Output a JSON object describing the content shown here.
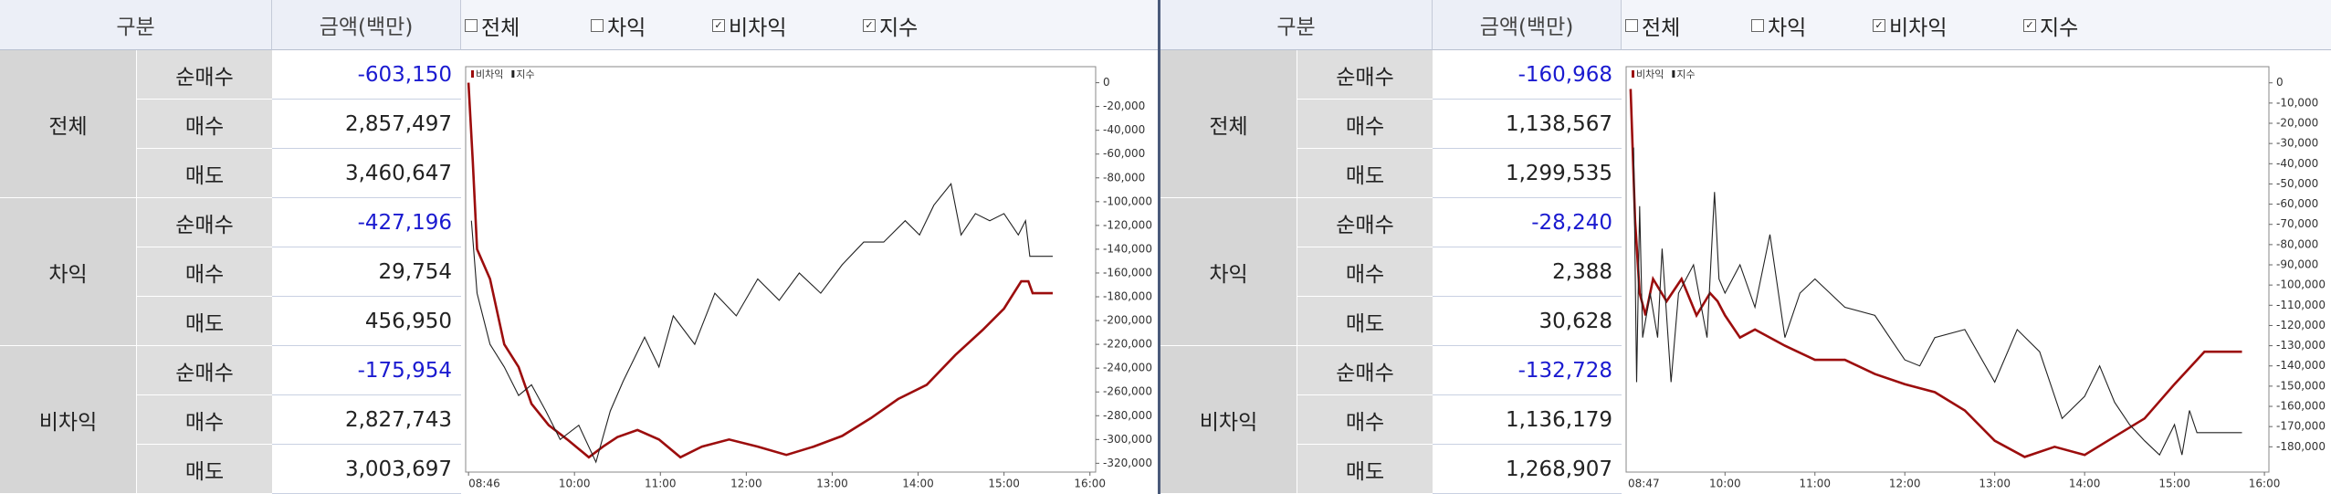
{
  "panels": [
    {
      "header": {
        "category": "구분",
        "amount": "금액(백만)"
      },
      "checkboxes": [
        {
          "label": "전체",
          "checked": false
        },
        {
          "label": "차익",
          "checked": false
        },
        {
          "label": "비차익",
          "checked": true
        },
        {
          "label": "지수",
          "checked": true
        }
      ],
      "groups": [
        {
          "name": "전체",
          "rows": [
            {
              "label": "순매수",
              "amount": "-603,150"
            },
            {
              "label": "매수",
              "amount": "2,857,497"
            },
            {
              "label": "매도",
              "amount": "3,460,647"
            }
          ]
        },
        {
          "name": "차익",
          "rows": [
            {
              "label": "순매수",
              "amount": "-427,196"
            },
            {
              "label": "매수",
              "amount": "29,754"
            },
            {
              "label": "매도",
              "amount": "456,950"
            }
          ]
        },
        {
          "name": "비차익",
          "rows": [
            {
              "label": "순매수",
              "amount": "-175,954"
            },
            {
              "label": "매수",
              "amount": "2,827,743"
            },
            {
              "label": "매도",
              "amount": "3,003,697"
            }
          ]
        }
      ]
    },
    {
      "header": {
        "category": "구분",
        "amount": "금액(백만)"
      },
      "checkboxes": [
        {
          "label": "전체",
          "checked": false
        },
        {
          "label": "차익",
          "checked": false
        },
        {
          "label": "비차익",
          "checked": true
        },
        {
          "label": "지수",
          "checked": true
        }
      ],
      "groups": [
        {
          "name": "전체",
          "rows": [
            {
              "label": "순매수",
              "amount": "-160,968"
            },
            {
              "label": "매수",
              "amount": "1,138,567"
            },
            {
              "label": "매도",
              "amount": "1,299,535"
            }
          ]
        },
        {
          "name": "차익",
          "rows": [
            {
              "label": "순매수",
              "amount": "-28,240"
            },
            {
              "label": "매수",
              "amount": "2,388"
            },
            {
              "label": "매도",
              "amount": "30,628"
            }
          ]
        },
        {
          "name": "비차익",
          "rows": [
            {
              "label": "순매수",
              "amount": "-132,728"
            },
            {
              "label": "매수",
              "amount": "1,136,179"
            },
            {
              "label": "매도",
              "amount": "1,268,907"
            }
          ]
        }
      ]
    }
  ],
  "chart_data": [
    {
      "type": "line",
      "legend": "top-left",
      "xlim": [
        "08:44",
        "16:04"
      ],
      "ylim": [
        13500,
        -327400
      ],
      "xticks": [
        "08:46",
        "10:00",
        "11:00",
        "12:00",
        "13:00",
        "14:00",
        "15:00",
        "16:00"
      ],
      "yticks": [
        0,
        {
          "value": -20000,
          "label": "-20,000"
        },
        {
          "value": -40000,
          "label": "-40,000"
        },
        {
          "value": -60000,
          "label": "-60,000"
        },
        {
          "value": -80000,
          "label": "-80,000"
        },
        {
          "value": -100000,
          "label": "-100,000"
        },
        {
          "value": -120000,
          "label": "-120,000"
        },
        {
          "value": -140000,
          "label": "-140,000"
        },
        {
          "value": -160000,
          "label": "-160,000"
        },
        {
          "value": -180000,
          "label": "-180,000"
        },
        {
          "value": -200000,
          "label": "-200,000"
        },
        {
          "value": -220000,
          "label": "-220,000"
        },
        {
          "value": -240000,
          "label": "-240,000"
        },
        {
          "value": -260000,
          "label": "-260,000"
        },
        {
          "value": -280000,
          "label": "-280,000"
        },
        {
          "value": -300000,
          "label": "-300,000"
        },
        {
          "value": -320000,
          "label": "-320,000"
        }
      ],
      "series": [
        {
          "name": "비차익",
          "color": "#9c0d0d",
          "x": [
            "08:46",
            "08:49",
            "08:52",
            "09:01",
            "09:11",
            "09:21",
            "09:30",
            "09:42",
            "09:55",
            "10:10",
            "10:20",
            "10:30",
            "10:44",
            "10:59",
            "11:14",
            "11:29",
            "11:48",
            "12:08",
            "12:28",
            "12:47",
            "13:07",
            "13:27",
            "13:46",
            "14:06",
            "14:26",
            "14:45",
            "15:00",
            "15:12",
            "15:17",
            "15:20",
            "15:34"
          ],
          "values": [
            0,
            -66000,
            -140000,
            -165000,
            -220000,
            -239000,
            -270000,
            -288000,
            -300000,
            -315000,
            -306000,
            -298000,
            -292000,
            -300000,
            -315000,
            -306000,
            -300000,
            -306000,
            -313000,
            -306000,
            -297000,
            -282000,
            -266000,
            -254000,
            -229000,
            -208000,
            -190000,
            -167000,
            -167000,
            -177000,
            -177000
          ]
        },
        {
          "name": "지수",
          "color": "#222222",
          "x": [
            "08:48",
            "08:52",
            "09:01",
            "09:11",
            "09:21",
            "09:30",
            "09:40",
            "09:50",
            "10:03",
            "10:15",
            "10:25",
            "10:34",
            "10:49",
            "10:59",
            "11:09",
            "11:24",
            "11:38",
            "11:53",
            "12:08",
            "12:23",
            "12:37",
            "12:52",
            "13:07",
            "13:22",
            "13:36",
            "13:51",
            "14:01",
            "14:11",
            "14:23",
            "14:30",
            "14:40",
            "14:50",
            "15:00",
            "15:10",
            "15:15",
            "15:18",
            "15:34"
          ],
          "values": [
            -116000,
            -177000,
            -220000,
            -239000,
            -263000,
            -254000,
            -276000,
            -300000,
            -288000,
            -319000,
            -276000,
            -251000,
            -214000,
            -239000,
            -196000,
            -220000,
            -177000,
            -196000,
            -165000,
            -183000,
            -160000,
            -177000,
            -153000,
            -134000,
            -134000,
            -116000,
            -128000,
            -103000,
            -85000,
            -128000,
            -110000,
            -116000,
            -110000,
            -128000,
            -116000,
            -146000,
            -146000
          ]
        }
      ]
    },
    {
      "type": "line",
      "legend": "top-left",
      "xlim": [
        "08:54",
        "16:03"
      ],
      "ylim": [
        8000,
        -192500
      ],
      "xticks": [
        "08:47",
        "10:00",
        "11:00",
        "12:00",
        "13:00",
        "14:00",
        "15:00",
        "16:00"
      ],
      "yticks": [
        0,
        {
          "value": -10000,
          "label": "-10,000"
        },
        {
          "value": -20000,
          "label": "-20,000"
        },
        {
          "value": -30000,
          "label": "-30,000"
        },
        {
          "value": -40000,
          "label": "-40,000"
        },
        {
          "value": -50000,
          "label": "-50,000"
        },
        {
          "value": -60000,
          "label": "-60,000"
        },
        {
          "value": -70000,
          "label": "-70,000"
        },
        {
          "value": -80000,
          "label": "-80,000"
        },
        {
          "value": -90000,
          "label": "-90,000"
        },
        {
          "value": -100000,
          "label": "-100,000"
        },
        {
          "value": -110000,
          "label": "-110,000"
        },
        {
          "value": -120000,
          "label": "-120,000"
        },
        {
          "value": -130000,
          "label": "-130,000"
        },
        {
          "value": -140000,
          "label": "-140,000"
        },
        {
          "value": -150000,
          "label": "-150,000"
        },
        {
          "value": -160000,
          "label": "-160,000"
        },
        {
          "value": -170000,
          "label": "-170,000"
        },
        {
          "value": -180000,
          "label": "-180,000"
        }
      ],
      "series": [
        {
          "name": "비차익",
          "color": "#9c0d0d",
          "x": [
            "08:57",
            "09:00",
            "09:03",
            "09:07",
            "09:12",
            "09:21",
            "09:31",
            "09:41",
            "09:50",
            "09:55",
            "10:00",
            "10:10",
            "10:20",
            "10:40",
            "11:00",
            "11:20",
            "11:40",
            "12:00",
            "12:20",
            "12:40",
            "13:00",
            "13:20",
            "13:40",
            "14:00",
            "14:20",
            "14:40",
            "15:00",
            "15:15",
            "15:20",
            "15:45"
          ],
          "values": [
            -3000,
            -68000,
            -104000,
            -115000,
            -97000,
            -108000,
            -97000,
            -115000,
            -104000,
            -108000,
            -115000,
            -126000,
            -122000,
            -130000,
            -137000,
            -137000,
            -144000,
            -149000,
            -153000,
            -162000,
            -177000,
            -185000,
            -180000,
            -184000,
            -175000,
            -166000,
            -149000,
            -137000,
            -133000,
            -133000
          ]
        },
        {
          "name": "지수",
          "color": "#222222",
          "x": [
            "08:59",
            "09:01",
            "09:03",
            "09:05",
            "09:10",
            "09:15",
            "09:18",
            "09:24",
            "09:29",
            "09:39",
            "09:48",
            "09:53",
            "09:56",
            "10:00",
            "10:10",
            "10:20",
            "10:30",
            "10:40",
            "10:50",
            "11:00",
            "11:10",
            "11:20",
            "11:40",
            "12:00",
            "12:10",
            "12:20",
            "12:40",
            "13:00",
            "13:15",
            "13:30",
            "13:45",
            "14:00",
            "14:10",
            "14:20",
            "14:30",
            "14:40",
            "14:50",
            "15:00",
            "15:05",
            "15:10",
            "15:15",
            "15:45"
          ],
          "values": [
            -32000,
            -148000,
            -61000,
            -126000,
            -104000,
            -126000,
            -82000,
            -148000,
            -104000,
            -90000,
            -126000,
            -54000,
            -97000,
            -104000,
            -90000,
            -111000,
            -75000,
            -126000,
            -104000,
            -97000,
            -104000,
            -111000,
            -115000,
            -137000,
            -140000,
            -126000,
            -122000,
            -148000,
            -122000,
            -133000,
            -166000,
            -155000,
            -140000,
            -158000,
            -169000,
            -177000,
            -184000,
            -169000,
            -184000,
            -162000,
            -173000,
            -173000
          ]
        }
      ]
    }
  ]
}
